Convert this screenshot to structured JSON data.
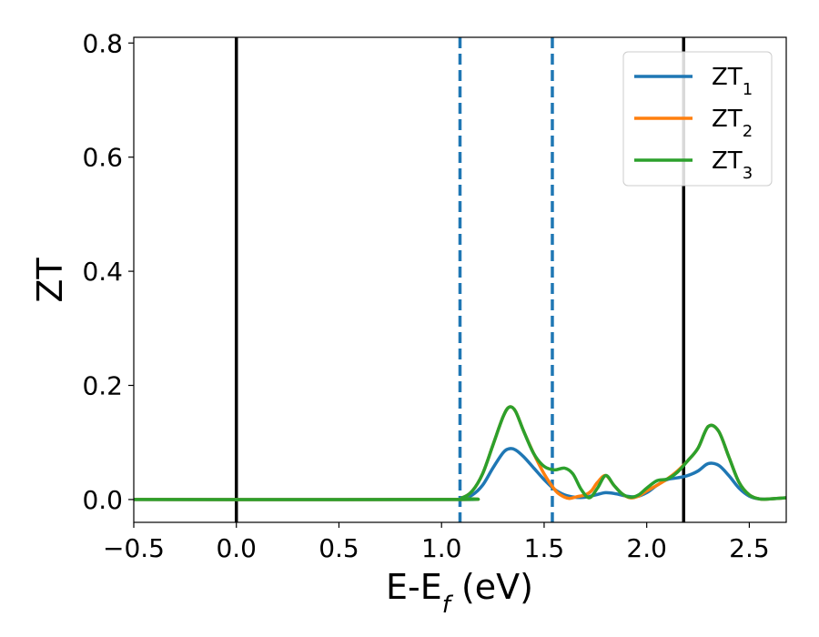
{
  "chart_data": {
    "type": "line",
    "xlabel": "E-E",
    "xlabel_sub": "f",
    "xlabel_unit": " (eV)",
    "ylabel": "ZT",
    "xlim": [
      -0.5,
      2.68
    ],
    "ylim": [
      -0.04,
      0.81
    ],
    "xticks": [
      -0.5,
      0.0,
      0.5,
      1.0,
      1.5,
      2.0,
      2.5
    ],
    "xtick_labels": [
      "−0.5",
      "0.0",
      "0.5",
      "1.0",
      "1.5",
      "2.0",
      "2.5"
    ],
    "yticks": [
      0.0,
      0.2,
      0.4,
      0.6,
      0.8
    ],
    "ytick_labels": [
      "0.0",
      "0.2",
      "0.4",
      "0.6",
      "0.8"
    ],
    "grid": false,
    "legend_position": "top-right",
    "vlines": [
      {
        "x": 0.0,
        "style": "solid",
        "color": "#000000"
      },
      {
        "x": 2.18,
        "style": "solid",
        "color": "#000000"
      },
      {
        "x": 1.09,
        "style": "dashed",
        "color": "#1f77b4"
      },
      {
        "x": 1.54,
        "style": "dashed",
        "color": "#1f77b4"
      }
    ],
    "series": [
      {
        "name": "ZT",
        "sub": "1",
        "color": "#1f77b4",
        "x": [
          -0.5,
          1.05,
          1.1,
          1.15,
          1.2,
          1.25,
          1.3,
          1.33,
          1.36,
          1.4,
          1.45,
          1.5,
          1.55,
          1.6,
          1.65,
          1.7,
          1.75,
          1.8,
          1.85,
          1.9,
          1.95,
          2.0,
          2.05,
          2.1,
          2.15,
          2.2,
          2.25,
          2.3,
          2.35,
          2.4,
          2.45,
          2.5,
          2.55,
          2.6,
          2.68
        ],
        "y": [
          0.0,
          0.0,
          0.002,
          0.008,
          0.025,
          0.055,
          0.082,
          0.089,
          0.087,
          0.075,
          0.055,
          0.035,
          0.018,
          0.008,
          0.004,
          0.004,
          0.008,
          0.012,
          0.01,
          0.006,
          0.005,
          0.012,
          0.025,
          0.035,
          0.038,
          0.042,
          0.05,
          0.063,
          0.06,
          0.042,
          0.02,
          0.006,
          0.001,
          0.001,
          0.003
        ]
      },
      {
        "name": "ZT",
        "sub": "2",
        "color": "#ff7f0e",
        "x": [
          -0.5,
          1.05,
          1.1,
          1.15,
          1.2,
          1.25,
          1.3,
          1.33,
          1.36,
          1.4,
          1.45,
          1.5,
          1.55,
          1.58,
          1.62,
          1.66,
          1.7,
          1.73,
          1.76,
          1.8,
          1.84,
          1.88,
          1.92,
          1.96,
          2.0,
          2.05,
          2.1,
          2.15,
          2.2,
          2.25,
          2.3,
          2.35,
          2.4,
          2.45,
          2.5,
          2.55,
          2.6,
          2.68
        ],
        "y": [
          0.0,
          0.0,
          0.003,
          0.015,
          0.045,
          0.095,
          0.145,
          0.162,
          0.155,
          0.12,
          0.08,
          0.045,
          0.018,
          0.008,
          0.002,
          0.005,
          0.008,
          0.015,
          0.03,
          0.042,
          0.025,
          0.01,
          0.003,
          0.006,
          0.015,
          0.025,
          0.036,
          0.05,
          0.068,
          0.09,
          0.128,
          0.12,
          0.075,
          0.03,
          0.008,
          0.001,
          0.001,
          0.003
        ]
      },
      {
        "name": "ZT",
        "sub": "3",
        "color": "#2ca02c",
        "x": [
          -0.5,
          1.05,
          1.1,
          1.15,
          1.2,
          1.25,
          1.3,
          1.33,
          1.36,
          1.4,
          1.45,
          1.5,
          1.55,
          1.6,
          1.64,
          1.68,
          1.72,
          1.76,
          1.8,
          1.84,
          1.88,
          1.92,
          1.96,
          2.0,
          2.05,
          2.1,
          2.15,
          2.2,
          2.25,
          2.3,
          2.35,
          2.4,
          2.45,
          2.5,
          2.55,
          2.6,
          2.68
        ],
        "y": [
          0.0,
          0.0,
          0.003,
          0.015,
          0.045,
          0.095,
          0.145,
          0.162,
          0.155,
          0.12,
          0.08,
          0.058,
          0.052,
          0.055,
          0.045,
          0.018,
          0.003,
          0.02,
          0.042,
          0.025,
          0.01,
          0.004,
          0.008,
          0.02,
          0.033,
          0.036,
          0.048,
          0.068,
          0.09,
          0.128,
          0.12,
          0.075,
          0.03,
          0.008,
          0.001,
          0.001,
          0.003
        ]
      }
    ]
  }
}
